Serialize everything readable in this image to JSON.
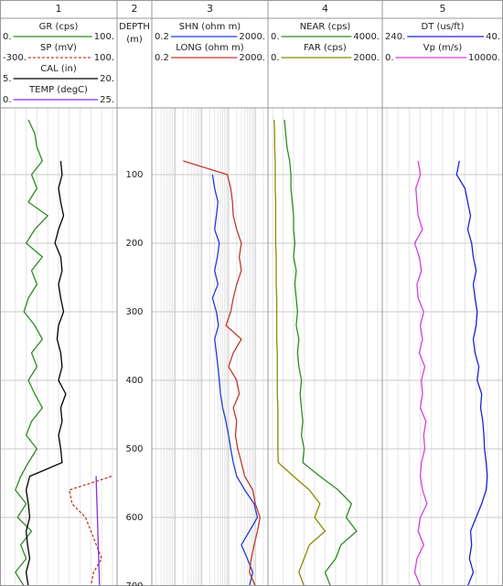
{
  "chart_data": {
    "type": "well-log",
    "depth": [
      20,
      40,
      60,
      80,
      100,
      120,
      140,
      160,
      180,
      200,
      220,
      240,
      260,
      280,
      300,
      320,
      340,
      360,
      380,
      400,
      420,
      440,
      460,
      480,
      500,
      520,
      540,
      560,
      580,
      600,
      620,
      640,
      660,
      680,
      700
    ],
    "ylim": [
      0,
      700
    ],
    "yticks": [
      100,
      200,
      300,
      400,
      500,
      600,
      700
    ],
    "tracks": [
      {
        "number": "1",
        "curves": [
          {
            "name": "GR (cps)",
            "color": "#2e8b22",
            "dash": false,
            "log": false,
            "xlim": [
              {
                "value": 0,
                "label": "0."
              },
              {
                "value": 100,
                "label": "100."
              }
            ],
            "values": [
              22,
              28,
              30,
              35,
              25,
              30,
              22,
              40,
              28,
              20,
              35,
              25,
              30,
              22,
              18,
              28,
              35,
              25,
              30,
              22,
              28,
              35,
              25,
              20,
              30,
              22,
              15,
              10,
              20,
              12,
              25,
              15,
              20,
              10,
              18
            ]
          },
          {
            "name": "SP (mV)",
            "color": "#c0392b",
            "dash": true,
            "log": false,
            "xlim": [
              {
                "value": -300,
                "label": "-300."
              },
              {
                "value": 100,
                "label": "100."
              }
            ],
            "values": [
              null,
              null,
              null,
              null,
              null,
              null,
              null,
              null,
              null,
              null,
              null,
              null,
              null,
              null,
              null,
              null,
              null,
              null,
              null,
              null,
              null,
              null,
              null,
              null,
              null,
              null,
              97,
              -60,
              -50,
              0,
              20,
              40,
              60,
              30,
              20
            ]
          },
          {
            "name": "CAL (in)",
            "color": "#000000",
            "dash": false,
            "log": false,
            "xlim": [
              {
                "value": 5,
                "label": "5."
              },
              {
                "value": 20,
                "label": "20."
              }
            ],
            "values": [
              null,
              null,
              null,
              12.8,
              13,
              12.5,
              12.8,
              13.2,
              12.5,
              12,
              12.8,
              13,
              12.5,
              12.8,
              13.2,
              12.5,
              12.3,
              12.8,
              13,
              12.5,
              13.5,
              12.8,
              13,
              12.5,
              12.8,
              13,
              8.5,
              8,
              8.3,
              8.5,
              8,
              8.2,
              8.5,
              8,
              8.3
            ]
          },
          {
            "name": "TEMP (degC)",
            "color": "#8a2be2",
            "dash": false,
            "log": false,
            "xlim": [
              {
                "value": 0,
                "label": "0."
              },
              {
                "value": 25,
                "label": "25."
              }
            ],
            "values": [
              null,
              null,
              null,
              null,
              null,
              null,
              null,
              null,
              null,
              null,
              null,
              null,
              null,
              null,
              null,
              null,
              null,
              null,
              null,
              null,
              null,
              null,
              null,
              null,
              null,
              null,
              21.2,
              21.3,
              21.4,
              21.5,
              21.6,
              21.7,
              21.8,
              21.9,
              22
            ]
          }
        ]
      },
      {
        "number": "2",
        "depth_label": "DEPTH",
        "depth_unit": "(m)",
        "curves": []
      },
      {
        "number": "3",
        "curves": [
          {
            "name": "SHN (ohm m)",
            "color": "#1f3fd6",
            "dash": false,
            "log": true,
            "xlim": [
              0.2,
              {
                "value": 2000,
                "label": "2000."
              }
            ],
            "values": [
              null,
              null,
              null,
              null,
              25,
              30,
              40,
              35,
              30,
              45,
              38,
              30,
              40,
              25,
              35,
              42,
              30,
              35,
              40,
              45,
              50,
              60,
              80,
              100,
              120,
              150,
              200,
              400,
              900,
              1200,
              600,
              300,
              500,
              800,
              600
            ]
          },
          {
            "name": "LONG (ohm m)",
            "color": "#c0392b",
            "dash": false,
            "log": true,
            "xlim": [
              0.2,
              {
                "value": 2000,
                "label": "2000."
              }
            ],
            "values": [
              null,
              null,
              null,
              2,
              90,
              120,
              140,
              150,
              200,
              300,
              250,
              300,
              200,
              150,
              120,
              80,
              300,
              150,
              100,
              200,
              250,
              150,
              200,
              180,
              220,
              300,
              400,
              800,
              1000,
              1500,
              1200,
              900,
              700,
              600,
              1000
            ]
          }
        ]
      },
      {
        "number": "4",
        "curves": [
          {
            "name": "NEAR (cps)",
            "color": "#2e8b22",
            "dash": false,
            "log": false,
            "xlim": [
              {
                "value": 0,
                "label": "0."
              },
              {
                "value": 4000,
                "label": "4000."
              }
            ],
            "values": [
              450,
              500,
              550,
              650,
              700,
              700,
              750,
              800,
              800,
              850,
              800,
              900,
              850,
              900,
              950,
              900,
              1000,
              950,
              1000,
              1100,
              1050,
              1100,
              1150,
              1100,
              1200,
              1150,
              1800,
              2500,
              3000,
              2800,
              3200,
              2600,
              2400,
              2000,
              2200
            ]
          },
          {
            "name": "FAR (cps)",
            "color": "#8b8b00",
            "dash": false,
            "log": false,
            "xlim": [
              {
                "value": 0,
                "label": "0."
              },
              {
                "value": 2000,
                "label": "2000."
              }
            ],
            "values": [
              30,
              40,
              40,
              50,
              50,
              50,
              60,
              60,
              60,
              60,
              70,
              70,
              70,
              80,
              80,
              80,
              80,
              90,
              90,
              90,
              90,
              100,
              100,
              100,
              100,
              110,
              400,
              700,
              900,
              800,
              1000,
              700,
              600,
              500,
              600
            ]
          }
        ]
      },
      {
        "number": "5",
        "curves": [
          {
            "name": "DT (us/ft)",
            "color": "#1f1fd6",
            "dash": false,
            "log": false,
            "xlim": [
              {
                "value": 240,
                "label": "240."
              },
              {
                "value": 40,
                "label": "40."
              }
            ],
            "values": [
              null,
              null,
              null,
              110,
              115,
              100,
              95,
              90,
              95,
              88,
              85,
              80,
              85,
              82,
              78,
              80,
              85,
              82,
              75,
              78,
              70,
              72,
              68,
              66,
              65,
              62,
              60,
              62,
              70,
              80,
              90,
              88,
              92,
              85,
              95
            ]
          },
          {
            "name": "Vp (m/s)",
            "color": "#d63fe0",
            "dash": false,
            "log": false,
            "xlim": [
              {
                "value": 0,
                "label": "0."
              },
              {
                "value": 10000,
                "label": "10000."
              }
            ],
            "values": [
              null,
              null,
              null,
              2800,
              3000,
              2600,
              2700,
              2800,
              3200,
              2500,
              2900,
              3100,
              2700,
              2800,
              3300,
              3000,
              3200,
              2900,
              3400,
              3100,
              3200,
              3000,
              3500,
              3300,
              3400,
              3100,
              3000,
              3200,
              3600,
              3000,
              2800,
              3300,
              2700,
              2500,
              3000
            ]
          }
        ]
      }
    ]
  }
}
